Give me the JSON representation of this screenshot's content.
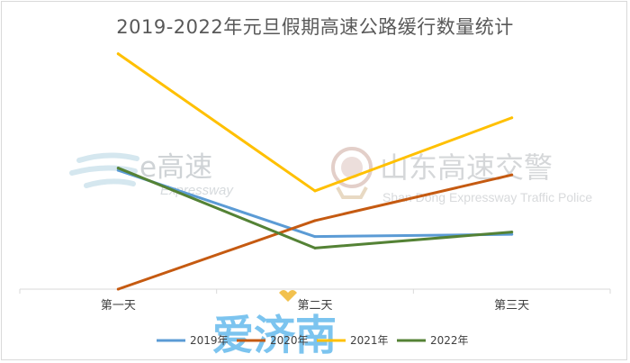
{
  "chart_data": {
    "type": "line",
    "title": "2019-2022年元旦假期高速公路缓行数量统计",
    "categories": [
      "第一天",
      "第二天",
      "第三天"
    ],
    "series": [
      {
        "name": "2019年",
        "color": "#5b9bd5",
        "values": [
          52,
          23,
          24
        ]
      },
      {
        "name": "2020年",
        "color": "#c55a11",
        "values": [
          0,
          30,
          50
        ]
      },
      {
        "name": "2021年",
        "color": "#ffc000",
        "values": [
          103,
          43,
          75
        ]
      },
      {
        "name": "2022年",
        "color": "#548235",
        "values": [
          53,
          18,
          25
        ]
      }
    ],
    "ylim": [
      0,
      110
    ],
    "grid": false,
    "legend": "bottom"
  },
  "watermarks": {
    "left_cn": "e高速",
    "left_en": "Expressway",
    "right_cn": "山东高速交警",
    "right_en": "Shan Dong Expressway Traffic Police",
    "bottom": "爱济南"
  }
}
